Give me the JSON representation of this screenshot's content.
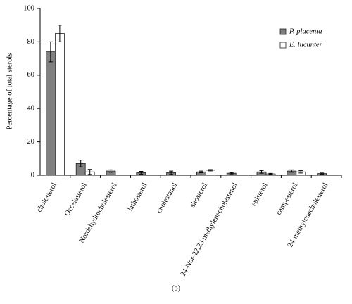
{
  "chart_data": {
    "type": "bar",
    "y_label": "Percentage of total sterols",
    "caption": "(b)",
    "categories": [
      "cholesterol",
      "Occelasterol",
      "Nordehydrocholesterol",
      "lathosterol",
      "cholestanol",
      "sitosterol",
      "24-Nor-22,23 methylenecholestenol",
      "episterol",
      "campesterol",
      "24-methylenecholesterol"
    ],
    "series": [
      {
        "name": "P. placenta",
        "color": "#808080",
        "values": [
          74,
          7,
          2.5,
          1.5,
          1.5,
          2,
          1.2,
          2,
          2.5,
          1
        ],
        "errors": [
          6,
          2,
          0.7,
          0.8,
          1,
          0.5,
          0.4,
          0.8,
          0.7,
          0.3
        ]
      },
      {
        "name": "E. lucunter",
        "color": "#ffffff",
        "values": [
          85,
          2,
          null,
          null,
          null,
          3,
          null,
          0.8,
          2,
          null
        ],
        "errors": [
          5,
          1.5,
          null,
          null,
          null,
          0.4,
          null,
          0.3,
          0.7,
          null
        ]
      }
    ],
    "ylim": [
      0,
      100
    ],
    "yticks": [
      0,
      20,
      40,
      60,
      80,
      100
    ],
    "legend": "top-right"
  }
}
